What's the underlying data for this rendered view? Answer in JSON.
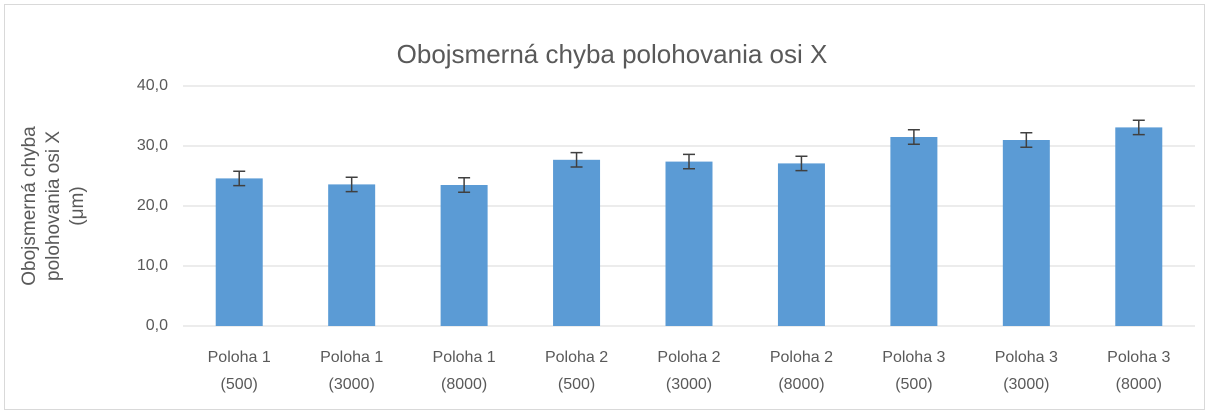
{
  "chart_data": {
    "type": "bar",
    "title": "Obojsmerná chyba polohovania osi X",
    "y_label": "Obojsmerná chyba\npolohovania osi X\n(μm)",
    "categories": [
      "Poloha 1\n(500)",
      "Poloha 1\n(3000)",
      "Poloha 1\n(8000)",
      "Poloha 2\n(500)",
      "Poloha 2\n(3000)",
      "Poloha 2\n(8000)",
      "Poloha 3\n(500)",
      "Poloha 3\n(3000)",
      "Poloha 3\n(8000)"
    ],
    "values": [
      24.6,
      23.6,
      23.5,
      27.7,
      27.4,
      27.1,
      31.5,
      31.0,
      33.1
    ],
    "errors": [
      1.2,
      1.2,
      1.2,
      1.2,
      1.2,
      1.2,
      1.2,
      1.2,
      1.2
    ],
    "color": "#5b9bd5",
    "error_color": "#404040",
    "ylim": [
      0,
      40
    ],
    "yticks": [
      {
        "value": 0,
        "label": "0,0"
      },
      {
        "value": 10,
        "label": "10,0"
      },
      {
        "value": 20,
        "label": "20,0"
      },
      {
        "value": 30,
        "label": "30,0"
      },
      {
        "value": 40,
        "label": "40,0"
      }
    ],
    "grid": true
  }
}
